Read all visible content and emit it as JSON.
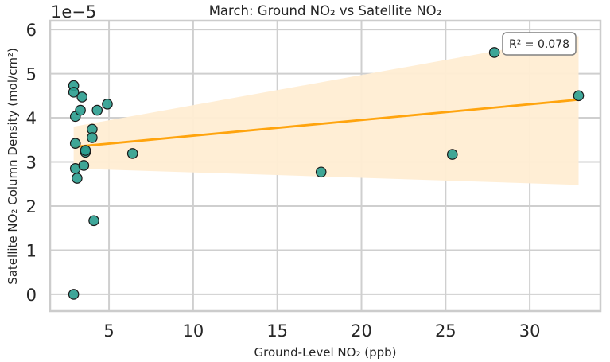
{
  "chart_data": {
    "type": "scatter",
    "title": "March: Ground NO₂ vs Satellite NO₂",
    "xlabel": "Ground-Level NO₂ (ppb)",
    "ylabel": "Satellite NO₂ Column Density (mol/cm²)",
    "y_offset_label": "1e−5",
    "xlim": [
      1.5,
      34.2
    ],
    "ylim": [
      -0.38,
      6.2
    ],
    "y_scale": 1e-05,
    "x_ticks": [
      5,
      10,
      15,
      20,
      25,
      30
    ],
    "y_ticks": [
      0,
      1,
      2,
      3,
      4,
      5,
      6
    ],
    "grid": true,
    "annotation": "R² = 0.078",
    "annotation_placement": "top-right",
    "points": {
      "x": [
        2.9,
        2.9,
        3.0,
        3.0,
        3.0,
        3.1,
        3.3,
        3.4,
        3.5,
        3.6,
        4.0,
        4.0,
        4.1,
        4.3,
        4.9,
        6.4,
        17.6,
        25.4,
        27.9,
        32.9
      ],
      "y": [
        4.73,
        4.58,
        4.03,
        3.42,
        2.85,
        2.63,
        4.17,
        4.47,
        2.92,
        3.22,
        3.74,
        3.55,
        1.67,
        4.17,
        4.31,
        3.19,
        2.77,
        3.17,
        5.48,
        4.5
      ]
    },
    "points_extra": {
      "x": [
        2.9,
        3.6
      ],
      "y": [
        0.0,
        3.26
      ]
    },
    "regression": {
      "x": [
        2.9,
        32.9
      ],
      "y": [
        3.34,
        4.41
      ],
      "ci_upper": [
        3.8,
        5.85
      ],
      "ci_lower": [
        2.85,
        2.48
      ]
    },
    "colors": {
      "points": "#2a9d8f",
      "point_edge": "#1a1a1a",
      "line": "#ffa40e",
      "band": "#ffedd3",
      "grid": "#cfcfcf",
      "spine": "#cccccc"
    }
  }
}
